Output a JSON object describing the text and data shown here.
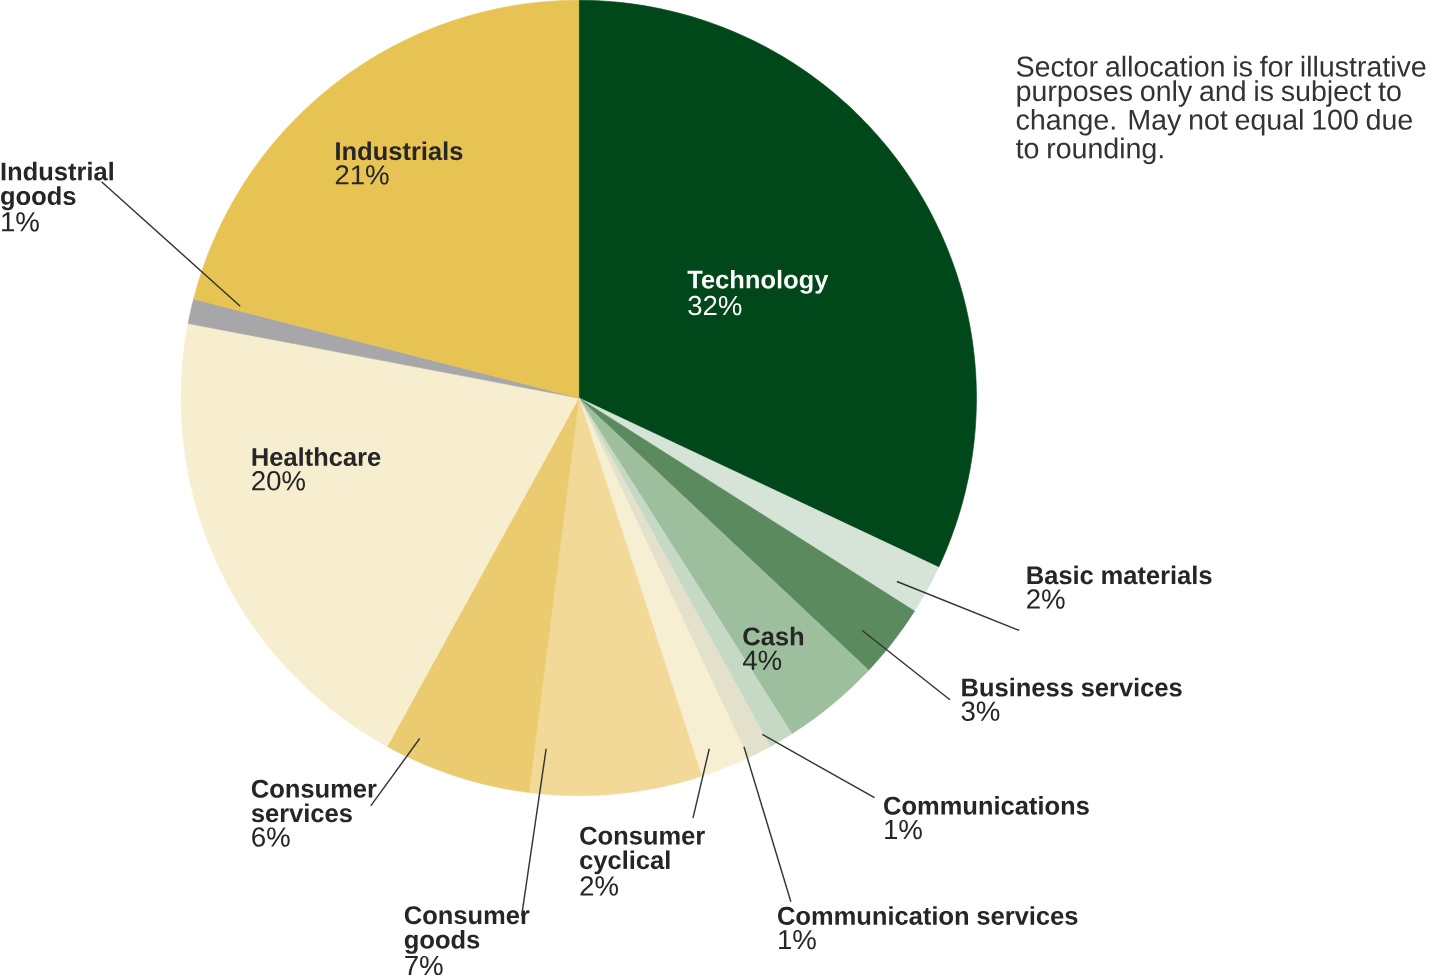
{
  "chart_data": {
    "type": "pie",
    "categories": [
      "Technology",
      "Basic materials",
      "Business services",
      "Cash",
      "Communications",
      "Communication services",
      "Consumer cyclical",
      "Consumer goods",
      "Consumer services",
      "Healthcare",
      "Industrial goods",
      "Industrials"
    ],
    "values": [
      32,
      2,
      3,
      4,
      1,
      1,
      2,
      7,
      6,
      20,
      1,
      21
    ],
    "value_labels": [
      "32%",
      "2%",
      "3%",
      "4%",
      "1%",
      "1%",
      "2%",
      "7%",
      "6%",
      "20%",
      "1%",
      "21%"
    ],
    "colors": [
      "#00471a",
      "#d6e4d8",
      "#5a8a5e",
      "#9dbf9d",
      "#c5d9c5",
      "#e3e0cc",
      "#f7efd2",
      "#f2d998",
      "#eacb70",
      "#f7eed0",
      "#a7a7a9",
      "#e6c353"
    ],
    "annotations": [
      "Sector allocation is for illustrative purposes only and is subject to change. May not equal 100 due to rounding."
    ]
  }
}
